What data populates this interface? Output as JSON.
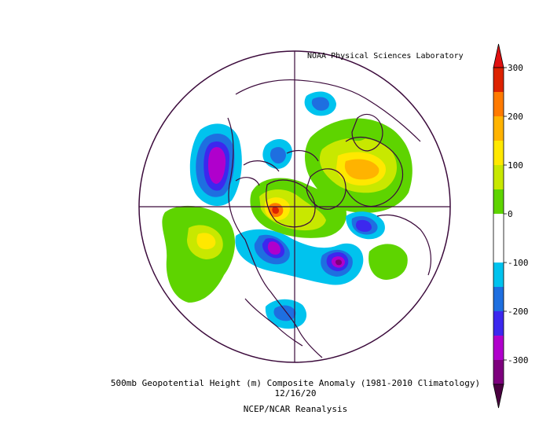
{
  "credit": "NOAA Physical Sciences Laboratory",
  "caption": {
    "title": "500mb Geopotential Height (m) Composite Anomaly (1981-2010 Climatology)",
    "date": "12/16/20",
    "source": "NCEP/NCAR Reanalysis"
  },
  "colorbar": {
    "labels": [
      "300",
      "200",
      "100",
      "0",
      "-100",
      "-200",
      "-300"
    ],
    "colors": [
      "#dd2200",
      "#ff7a00",
      "#ffb300",
      "#ffe800",
      "#c8e800",
      "#5ed400",
      "#ffffff",
      "#ffffff",
      "#00c3ee",
      "#1e6fe0",
      "#3c28ee",
      "#b000cc",
      "#7d007d"
    ],
    "top_arrow_color": "#e01010",
    "bottom_arrow_color": "#4a0040"
  },
  "map": {
    "projection": "polar-stereographic",
    "coastline_color": "#3b0a3b"
  }
}
